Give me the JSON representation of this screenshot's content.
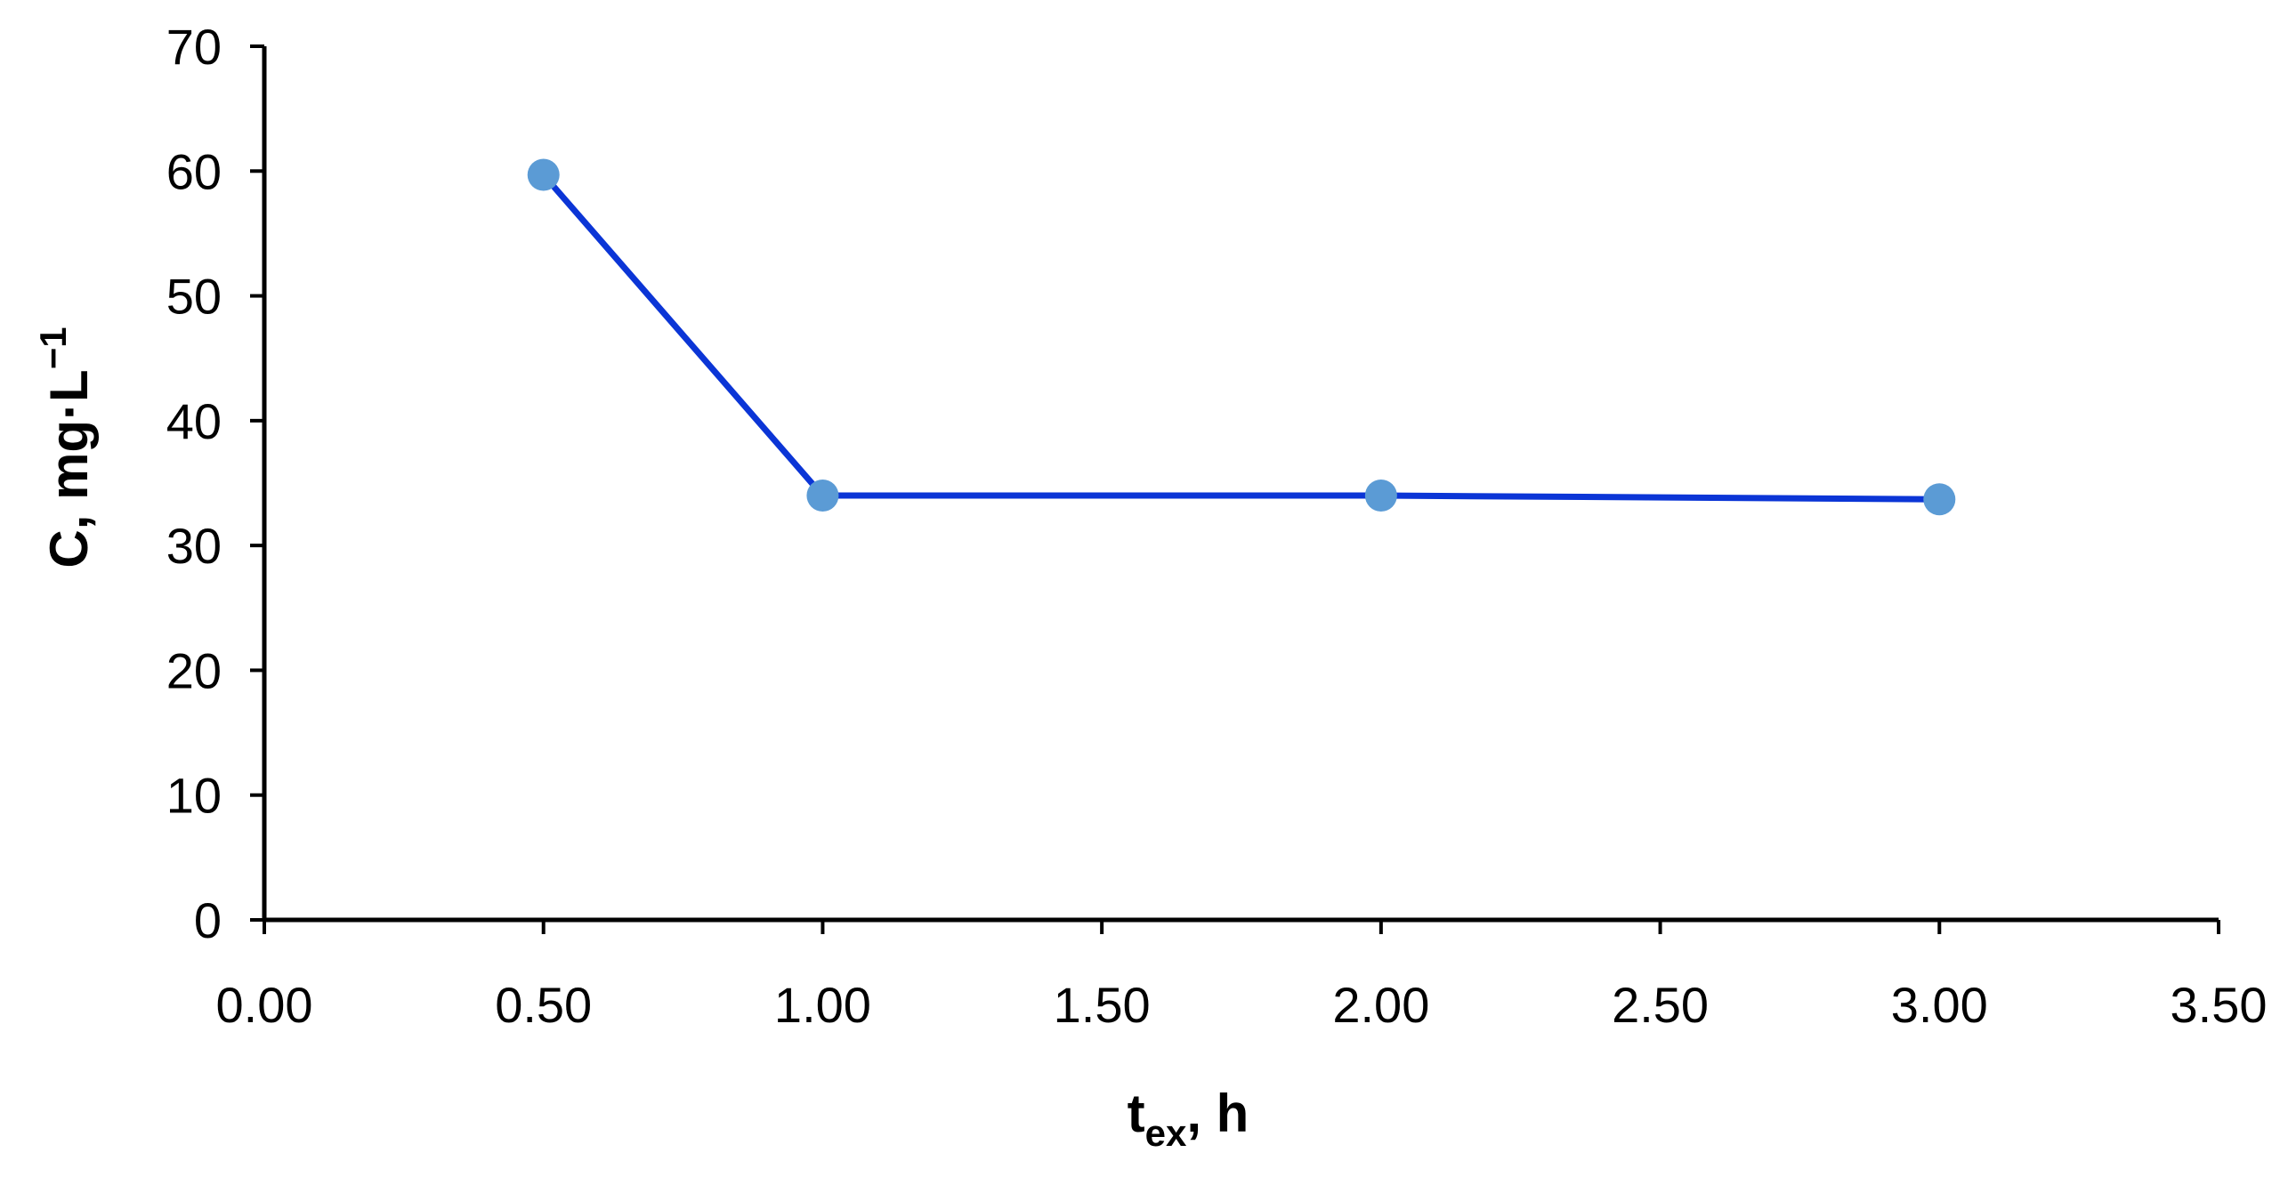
{
  "chart_data": {
    "type": "line",
    "x": [
      0.5,
      1.0,
      2.0,
      3.0
    ],
    "series": [
      {
        "values": [
          59.7,
          34.0,
          34.0,
          33.7
        ]
      }
    ],
    "xlabel": {
      "main": "t",
      "sub": "ex",
      "rest": ", h"
    },
    "ylabel": {
      "main": "C",
      "rest": ", mg·L",
      "sup": "−1"
    },
    "xlim": [
      0,
      3.5
    ],
    "ylim": [
      0,
      70
    ],
    "xticks": [
      "0.00",
      "0.50",
      "1.00",
      "1.50",
      "2.00",
      "2.50",
      "3.00",
      "3.50"
    ],
    "yticks": [
      "0",
      "10",
      "20",
      "30",
      "40",
      "50",
      "60",
      "70"
    ],
    "grid": false,
    "legend": "none",
    "line_color": "#0b35d6",
    "marker_color": "#5b9bd5",
    "axis_color": "#000000"
  }
}
